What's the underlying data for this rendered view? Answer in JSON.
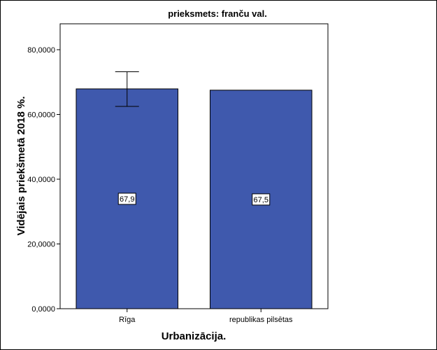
{
  "chart_data": {
    "type": "bar",
    "title": "prieksmets: franču val.",
    "xlabel": "Urbanizācija.",
    "ylabel": "Vidējais priekšmetā 2018 %.",
    "categories": [
      "Rīga",
      "republikas pilsētas"
    ],
    "values": [
      67.9,
      67.5
    ],
    "data_labels": [
      "67,9",
      "67,5"
    ],
    "error_bars": [
      {
        "category": "Rīga",
        "low": 62.5,
        "high": 73.2
      },
      null
    ],
    "ylim": [
      0,
      88
    ],
    "yticks": [
      0,
      20,
      40,
      60,
      80
    ],
    "ytick_labels": [
      "0,0000",
      "20,0000",
      "40,0000",
      "60,0000",
      "80,0000"
    ],
    "grid": false,
    "legend": "none",
    "colors": {
      "bar": "#3f59ad",
      "bar_stroke": "#000000"
    }
  }
}
